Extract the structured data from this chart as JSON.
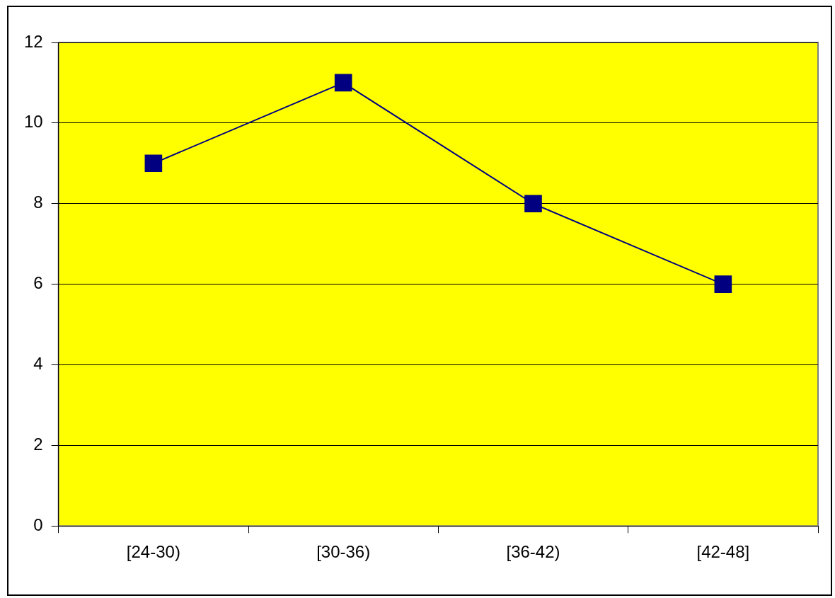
{
  "chart_data": {
    "type": "line",
    "categories": [
      "[24-30)",
      "[30-36)",
      "[36-42)",
      "[42-48]"
    ],
    "series": [
      {
        "color": "#000080",
        "values": [
          9,
          11,
          8,
          6
        ]
      }
    ],
    "ylim": [
      0,
      12
    ],
    "yticks": [
      0,
      2,
      4,
      6,
      8,
      10,
      12
    ],
    "grid": "y",
    "legend": false,
    "marker": "square",
    "line_style": "solid"
  }
}
